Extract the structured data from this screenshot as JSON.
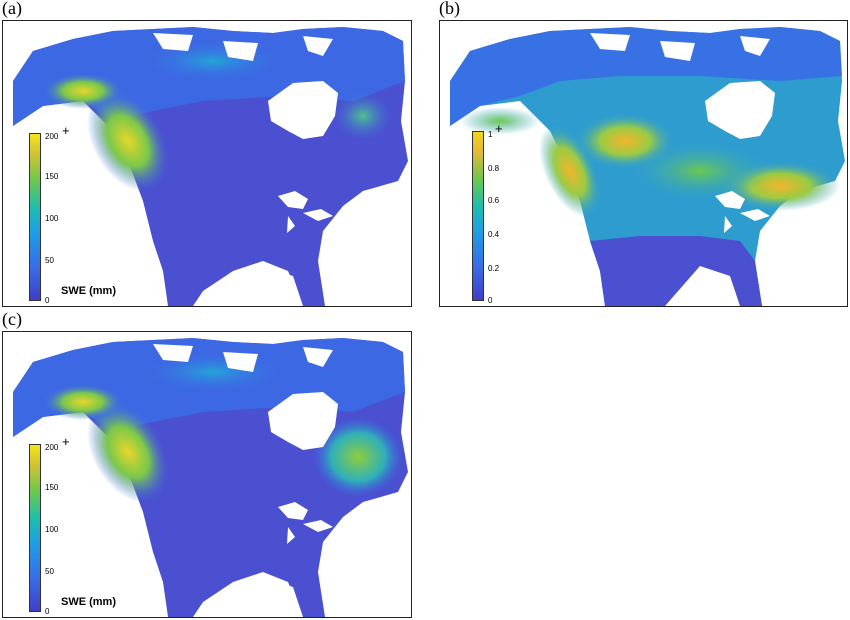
{
  "panels": [
    {
      "label": "(a)",
      "colorbar": {
        "ticks": [
          "200",
          "150",
          "100",
          "50",
          "0"
        ],
        "overflow_mark": "+",
        "unit_label": "SWE (mm)"
      }
    },
    {
      "label": "(b)",
      "colorbar": {
        "ticks": [
          "1",
          "0.8",
          "0.6",
          "0.4",
          "0.2",
          "0"
        ],
        "overflow_mark": "+",
        "unit_label": ""
      }
    },
    {
      "label": "(c)",
      "colorbar": {
        "ticks": [
          "200",
          "150",
          "100",
          "50",
          "0"
        ],
        "overflow_mark": "+",
        "unit_label": "SWE (mm)"
      }
    }
  ],
  "colors": {
    "low": "#3f3fc9",
    "mid_low": "#3a6de6",
    "mid": "#1dbdb0",
    "mid_high": "#6cc84e",
    "high": "#f4e51d",
    "water": "#ffffff"
  }
}
